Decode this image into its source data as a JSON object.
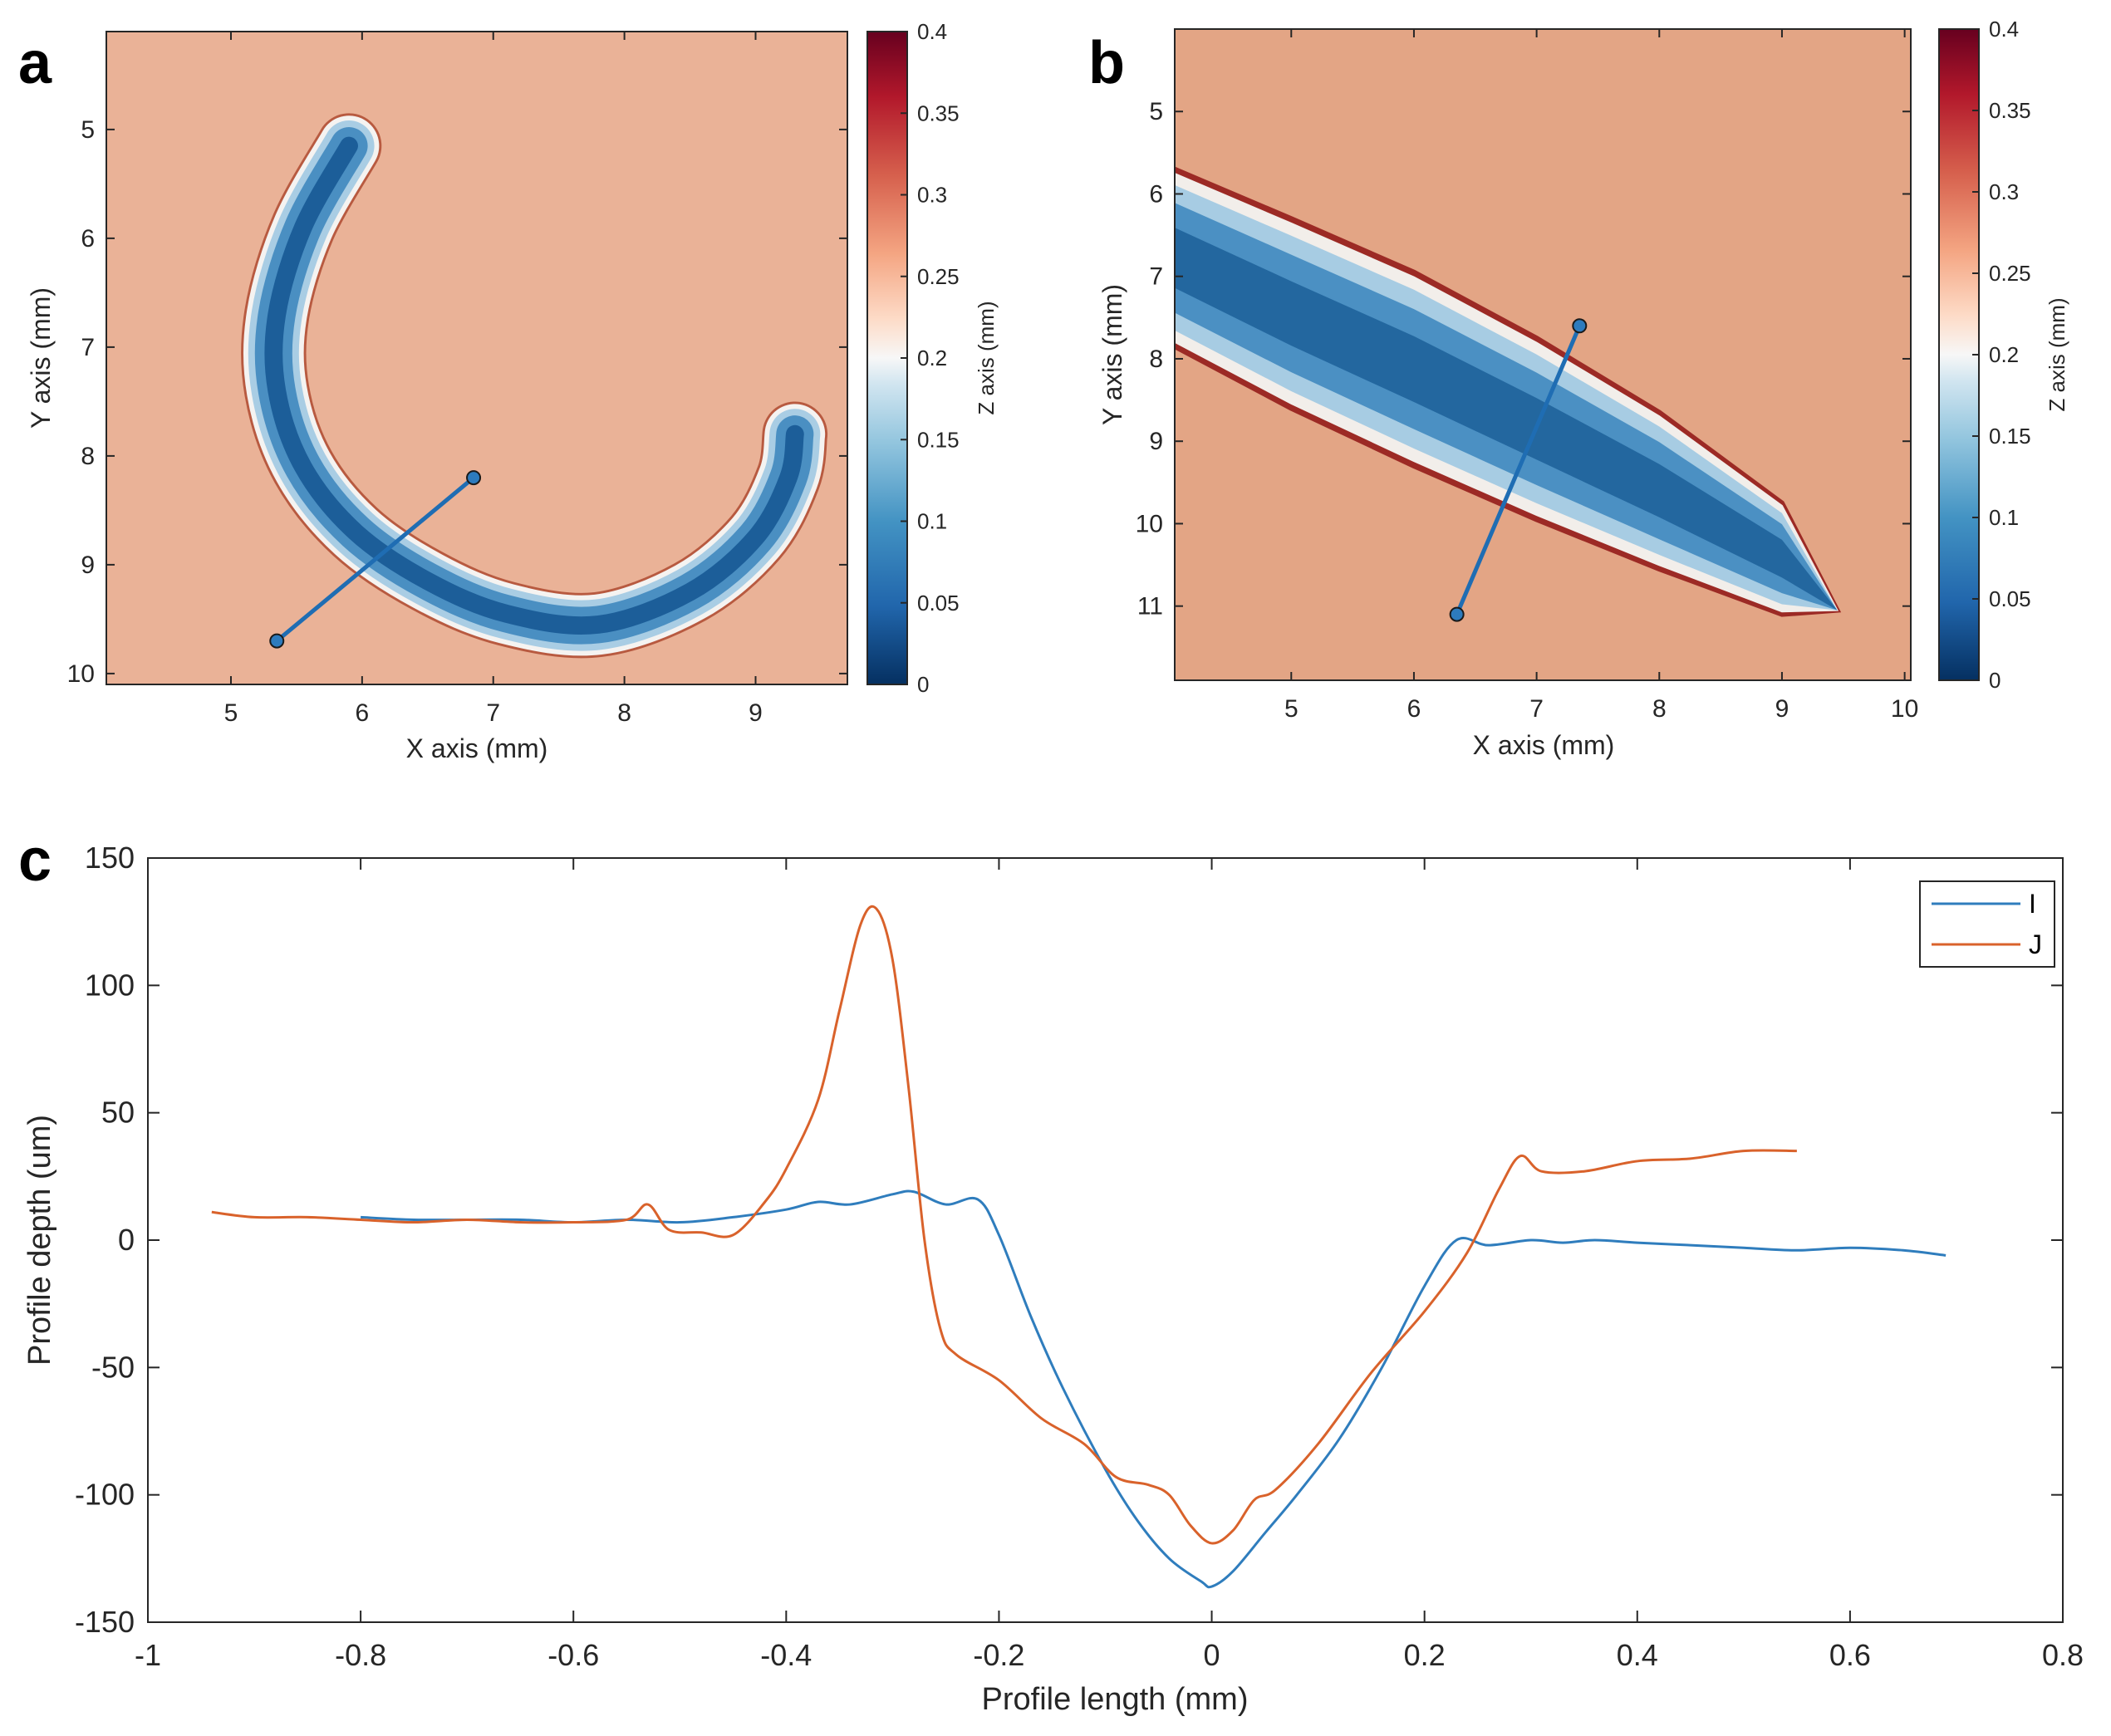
{
  "panels": {
    "a": "a",
    "b": "b",
    "c": "c"
  },
  "colors": {
    "background_map": "#e9ae92",
    "deep": "#053061",
    "mid_blue": "#2f79b5",
    "light_blue": "#d1e5f0",
    "white": "#f7f7f7",
    "salmon": "#f4a582",
    "red": "#b2182b",
    "dark_red": "#67001f",
    "series_I": "#2f7dbd",
    "series_J": "#d9622b"
  },
  "chart_data": [
    {
      "id": "a",
      "type": "heatmap",
      "xlabel": "X axis (mm)",
      "ylabel": "Y axis (mm)",
      "colorbar_label": "Z axis (mm)",
      "xlim": [
        4.05,
        9.7
      ],
      "ylim": [
        4.1,
        10.1
      ],
      "xticks": [
        "5",
        "6",
        "7",
        "8",
        "9"
      ],
      "yticks": [
        "5",
        "6",
        "7",
        "8",
        "9",
        "10"
      ],
      "clim": [
        0,
        0.4
      ],
      "colorbar_ticks": [
        "0",
        "0.05",
        "0.1",
        "0.15",
        "0.2",
        "0.25",
        "0.3",
        "0.35",
        "0.4"
      ],
      "groove_centerline": [
        [
          5.9,
          5.15
        ],
        [
          5.55,
          5.9
        ],
        [
          5.35,
          6.7
        ],
        [
          5.35,
          7.4
        ],
        [
          5.55,
          8.1
        ],
        [
          5.95,
          8.7
        ],
        [
          6.5,
          9.15
        ],
        [
          7.1,
          9.45
        ],
        [
          7.8,
          9.55
        ],
        [
          8.5,
          9.25
        ],
        [
          9.0,
          8.75
        ],
        [
          9.25,
          8.2
        ],
        [
          9.3,
          7.8
        ]
      ],
      "groove_width_mm": [
        0.12,
        0.28,
        0.38,
        0.42,
        0.44,
        0.46,
        0.46,
        0.46,
        0.46,
        0.42,
        0.36,
        0.3,
        0.22
      ],
      "profile_line": {
        "start": [
          5.35,
          9.7
        ],
        "end": [
          6.85,
          8.2
        ]
      }
    },
    {
      "id": "b",
      "type": "heatmap",
      "xlabel": "X axis (mm)",
      "ylabel": "Y axis (mm)",
      "colorbar_label": "Z axis (mm)",
      "xlim": [
        4.05,
        10.05
      ],
      "ylim": [
        4.0,
        11.9
      ],
      "xticks": [
        "5",
        "6",
        "7",
        "8",
        "9",
        "10"
      ],
      "yticks": [
        "5",
        "6",
        "7",
        "8",
        "9",
        "10",
        "11"
      ],
      "clim": [
        0,
        0.4
      ],
      "colorbar_ticks": [
        "0",
        "0.05",
        "0.1",
        "0.15",
        "0.2",
        "0.25",
        "0.3",
        "0.35",
        "0.4"
      ],
      "groove_upper_edge": [
        [
          4.05,
          5.7
        ],
        [
          5.0,
          6.3
        ],
        [
          6.0,
          6.95
        ],
        [
          7.0,
          7.75
        ],
        [
          8.0,
          8.65
        ],
        [
          9.0,
          9.75
        ],
        [
          9.45,
          11.05
        ]
      ],
      "groove_lower_edge": [
        [
          4.05,
          7.85
        ],
        [
          5.0,
          8.6
        ],
        [
          6.0,
          9.3
        ],
        [
          7.0,
          9.95
        ],
        [
          8.0,
          10.55
        ],
        [
          9.0,
          11.1
        ],
        [
          9.45,
          11.05
        ]
      ],
      "profile_line": {
        "start": [
          6.35,
          11.1
        ],
        "end": [
          7.35,
          7.6
        ]
      }
    },
    {
      "id": "c",
      "type": "line",
      "xlabel": "Profile length (mm)",
      "ylabel": "Profile depth (um)",
      "xlim": [
        -1,
        0.8
      ],
      "ylim": [
        -150,
        150
      ],
      "xticks": [
        "-1",
        "-0.8",
        "-0.6",
        "-0.4",
        "-0.2",
        "0",
        "0.2",
        "0.4",
        "0.6",
        "0.8"
      ],
      "yticks": [
        "-150",
        "-100",
        "-50",
        "0",
        "50",
        "100",
        "150"
      ],
      "legend_position": "top-right",
      "series": [
        {
          "name": "I",
          "x": [
            -0.8,
            -0.75,
            -0.7,
            -0.65,
            -0.6,
            -0.55,
            -0.5,
            -0.45,
            -0.4,
            -0.37,
            -0.34,
            -0.3,
            -0.28,
            -0.25,
            -0.22,
            -0.2,
            -0.17,
            -0.14,
            -0.1,
            -0.07,
            -0.04,
            -0.01,
            0.0,
            0.02,
            0.05,
            0.08,
            0.12,
            0.16,
            0.2,
            0.23,
            0.26,
            0.3,
            0.33,
            0.36,
            0.4,
            0.45,
            0.5,
            0.55,
            0.6,
            0.65,
            0.69
          ],
          "y": [
            9,
            8,
            8,
            8,
            7,
            8,
            7,
            9,
            12,
            15,
            14,
            18,
            19,
            14,
            16,
            2,
            -30,
            -58,
            -90,
            -110,
            -125,
            -134,
            -136,
            -130,
            -115,
            -100,
            -78,
            -50,
            -18,
            0,
            -2,
            0,
            -1,
            0,
            -1,
            -2,
            -3,
            -4,
            -3,
            -4,
            -6
          ]
        },
        {
          "name": "J",
          "x": [
            -0.94,
            -0.9,
            -0.85,
            -0.8,
            -0.75,
            -0.7,
            -0.65,
            -0.6,
            -0.55,
            -0.53,
            -0.51,
            -0.48,
            -0.45,
            -0.42,
            -0.4,
            -0.37,
            -0.35,
            -0.33,
            -0.315,
            -0.3,
            -0.285,
            -0.27,
            -0.255,
            -0.24,
            -0.2,
            -0.16,
            -0.12,
            -0.09,
            -0.06,
            -0.04,
            -0.02,
            0.0,
            0.02,
            0.04,
            0.06,
            0.1,
            0.15,
            0.2,
            0.24,
            0.27,
            0.29,
            0.31,
            0.35,
            0.4,
            0.45,
            0.5,
            0.55
          ],
          "y": [
            11,
            9,
            9,
            8,
            7,
            8,
            7,
            7,
            8,
            14,
            4,
            3,
            2,
            15,
            28,
            55,
            90,
            124,
            130,
            110,
            60,
            0,
            -35,
            -45,
            -55,
            -70,
            -80,
            -93,
            -96,
            -100,
            -112,
            -119,
            -114,
            -102,
            -98,
            -80,
            -52,
            -28,
            -5,
            20,
            33,
            27,
            27,
            31,
            32,
            35,
            35
          ]
        }
      ]
    }
  ]
}
